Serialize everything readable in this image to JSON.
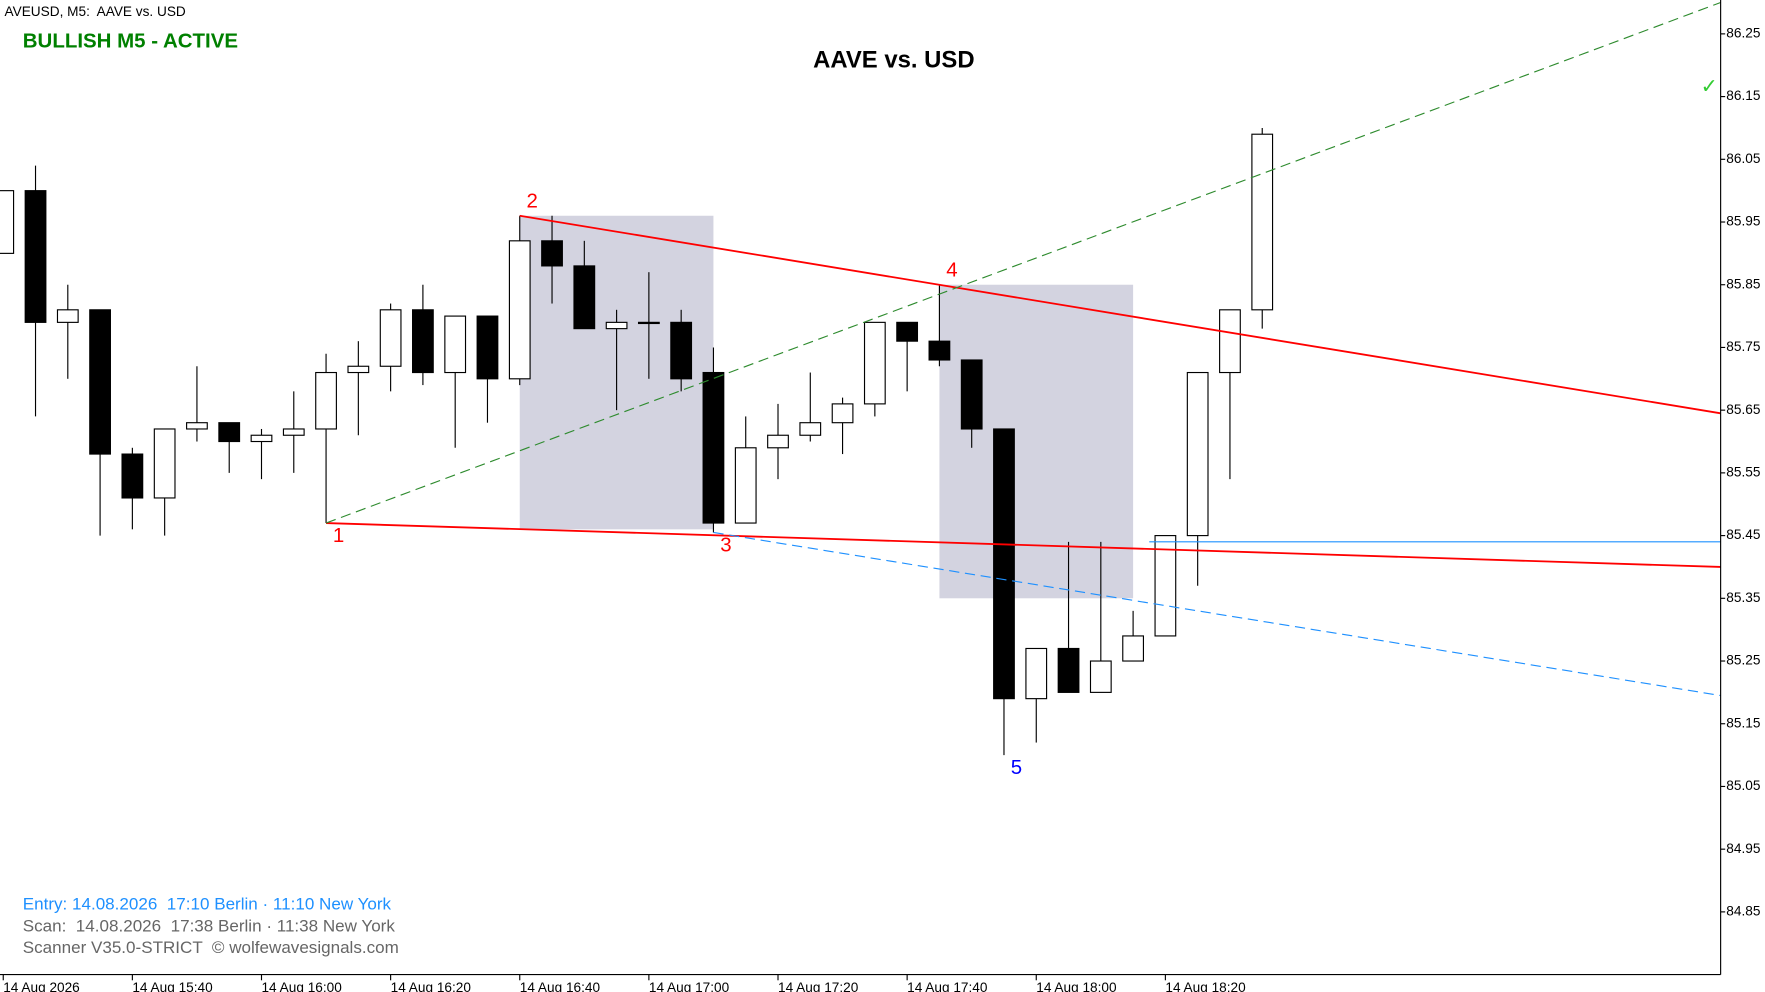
{
  "chart_data": {
    "type": "candlestick",
    "header": "AVEUSD, M5:  AAVE vs. USD",
    "status": "BULLISH M5 - ACTIVE",
    "title": "AAVE vs. USD",
    "signal_mark": "✓",
    "info": [
      "Entry: 14.08.2026  17:10 Berlin · 11:10 New York",
      "Scan:  14.08.2026  17:38 Berlin · 11:38 New York",
      "Scanner V35.0-STRICT  © wolfewavesignals.com"
    ],
    "categories": [
      "14 Aug 2026",
      null,
      null,
      null,
      "14 Aug 15:40",
      null,
      null,
      null,
      "14 Aug 16:00",
      null,
      null,
      null,
      "14 Aug 16:20",
      null,
      null,
      null,
      "14 Aug 16:40",
      null,
      null,
      null,
      "14 Aug 17:00",
      null,
      null,
      null,
      "14 Aug 17:20",
      null,
      null,
      null,
      "14 Aug 17:40",
      null,
      null,
      null,
      "14 Aug 18:00",
      null,
      null,
      null,
      "14 Aug 18:20",
      null,
      null,
      null
    ],
    "open": [
      85.9,
      86.0,
      85.79,
      85.81,
      85.58,
      85.51,
      85.62,
      85.63,
      85.6,
      85.61,
      85.62,
      85.71,
      85.72,
      85.81,
      85.71,
      85.8,
      85.7,
      85.92,
      85.88,
      85.78,
      85.79,
      85.79,
      85.71,
      85.47,
      85.59,
      85.61,
      85.63,
      85.66,
      85.79,
      85.76,
      85.73,
      85.62,
      85.19,
      85.27,
      85.2,
      85.25,
      85.29,
      85.45,
      85.71,
      85.81
    ],
    "high": [
      86.0,
      86.04,
      85.85,
      85.81,
      85.59,
      85.62,
      85.72,
      85.63,
      85.62,
      85.68,
      85.74,
      85.76,
      85.82,
      85.85,
      85.8,
      85.8,
      85.96,
      85.96,
      85.92,
      85.81,
      85.87,
      85.81,
      85.75,
      85.64,
      85.66,
      85.71,
      85.67,
      85.79,
      85.79,
      85.85,
      85.73,
      85.62,
      85.27,
      85.44,
      85.44,
      85.33,
      85.45,
      85.71,
      85.81,
      86.1
    ],
    "low": [
      85.9,
      85.64,
      85.7,
      85.45,
      85.46,
      85.45,
      85.6,
      85.55,
      85.54,
      85.55,
      85.47,
      85.61,
      85.68,
      85.69,
      85.59,
      85.63,
      85.69,
      85.82,
      85.78,
      85.65,
      85.7,
      85.68,
      85.455,
      85.47,
      85.54,
      85.6,
      85.58,
      85.64,
      85.68,
      85.72,
      85.59,
      85.1,
      85.12,
      85.2,
      85.2,
      85.25,
      85.29,
      85.37,
      85.54,
      85.78
    ],
    "close": [
      86.0,
      85.79,
      85.81,
      85.58,
      85.51,
      85.62,
      85.63,
      85.6,
      85.61,
      85.62,
      85.71,
      85.72,
      85.81,
      85.71,
      85.8,
      85.7,
      85.92,
      85.88,
      85.78,
      85.79,
      85.79,
      85.7,
      85.47,
      85.59,
      85.61,
      85.63,
      85.66,
      85.79,
      85.76,
      85.73,
      85.62,
      85.19,
      85.27,
      85.2,
      85.25,
      85.29,
      85.45,
      85.71,
      85.81,
      86.09
    ],
    "xlim": [
      -0.1,
      53.2
    ],
    "ylim": [
      84.75,
      86.304
    ],
    "yticks": [
      86.25,
      86.15,
      86.05,
      85.95,
      85.85,
      85.75,
      85.65,
      85.55,
      85.45,
      85.35,
      85.25,
      85.15,
      85.05,
      84.95,
      84.85
    ],
    "points": [
      {
        "label": "1",
        "index": 10,
        "price": 85.47,
        "color": "#ff0000"
      },
      {
        "label": "2",
        "index": 16,
        "price": 85.96,
        "color": "#ff0000"
      },
      {
        "label": "3",
        "index": 22,
        "price": 85.455,
        "color": "#ff0000"
      },
      {
        "label": "4",
        "index": 29,
        "price": 85.85,
        "color": "#ff0000"
      },
      {
        "label": "5",
        "index": 31,
        "price": 85.1,
        "color": "#0000ff"
      }
    ],
    "zones": [
      {
        "from": [
          16,
          85.96
        ],
        "to": [
          22,
          85.46
        ]
      },
      {
        "from": [
          29,
          85.85
        ],
        "to": [
          35,
          85.35
        ]
      }
    ],
    "lines": [
      {
        "from": [
          10,
          85.47
        ],
        "to": [
          53.2,
          85.4
        ],
        "color": "#ff0000",
        "dashed": false
      },
      {
        "from": [
          16,
          85.96
        ],
        "to": [
          53.2,
          85.645
        ],
        "color": "#ff0000",
        "dashed": false
      },
      {
        "from": [
          10,
          85.47
        ],
        "to": [
          53.2,
          86.3
        ],
        "color": "#2e8b2e",
        "dashed": true
      },
      {
        "from": [
          22,
          85.455
        ],
        "to": [
          53.2,
          85.195
        ],
        "color": "#1e90ff",
        "dashed": true
      },
      {
        "from": [
          35.5,
          85.44
        ],
        "to": [
          53.2,
          85.44
        ],
        "color": "#1e90ff",
        "dashed": false
      }
    ],
    "up_color": "#ffffff",
    "down_color": "#000000"
  }
}
